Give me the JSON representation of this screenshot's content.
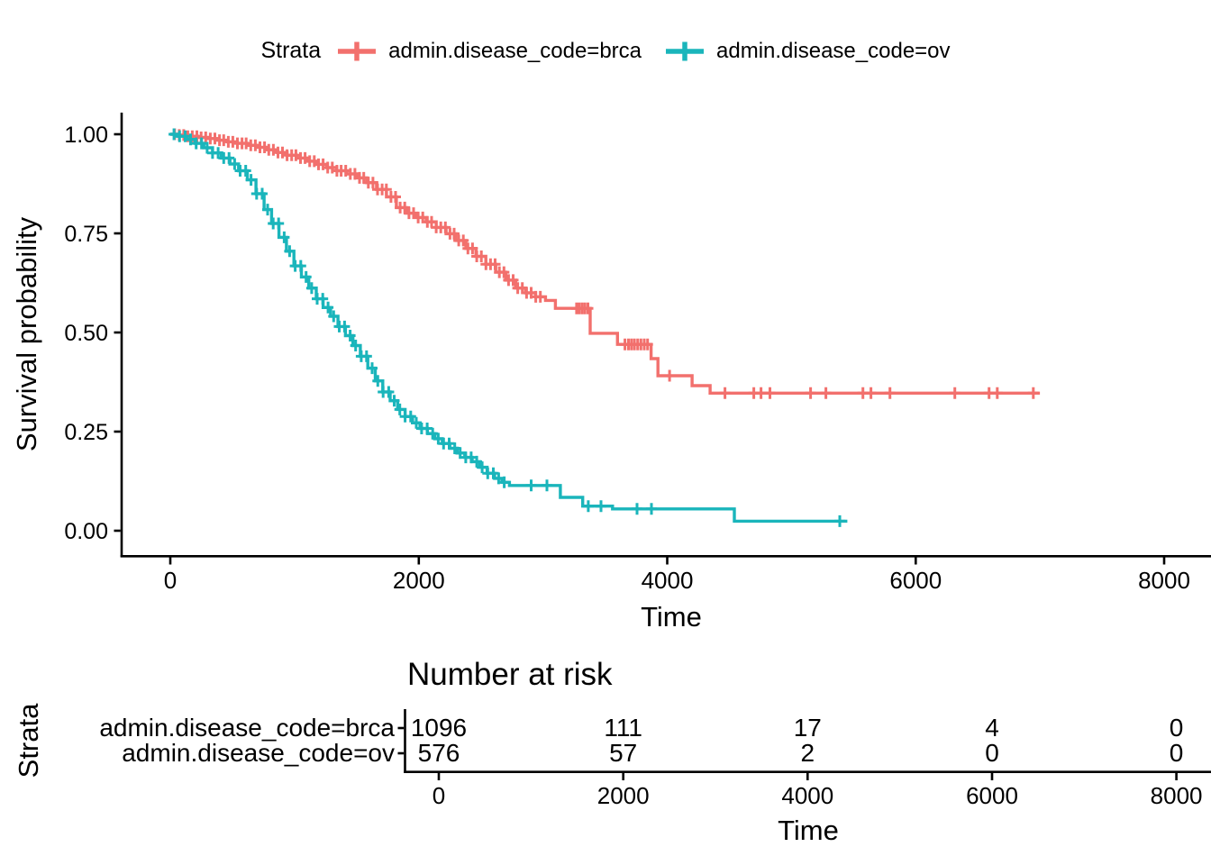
{
  "chart_data": {
    "type": "line",
    "variant": "kaplan_meier_survival",
    "title": "",
    "xlabel": "Time",
    "ylabel": "Survival probability",
    "xlim": [
      0,
      8400
    ],
    "ylim": [
      0,
      1
    ],
    "grid": false,
    "x_ticks": [
      0,
      2000,
      4000,
      6000,
      8000
    ],
    "x_tick_labels": [
      "0",
      "2000",
      "4000",
      "6000",
      "8000"
    ],
    "y_ticks": [
      1.0,
      0.75,
      0.5,
      0.25,
      0.0
    ],
    "y_tick_labels": [
      "1.00",
      "0.75",
      "0.50",
      "0.25",
      "0.00"
    ],
    "legend": {
      "title": "Strata",
      "position": "top"
    },
    "series": [
      {
        "name": "admin.disease_code=brca",
        "color": "#F2706D",
        "end_time": 7000,
        "steps": [
          [
            0,
            1.0
          ],
          [
            60,
            0.998
          ],
          [
            140,
            0.995
          ],
          [
            220,
            0.992
          ],
          [
            300,
            0.989
          ],
          [
            380,
            0.985
          ],
          [
            460,
            0.981
          ],
          [
            540,
            0.977
          ],
          [
            620,
            0.972
          ],
          [
            700,
            0.967
          ],
          [
            780,
            0.961
          ],
          [
            860,
            0.954
          ],
          [
            940,
            0.947
          ],
          [
            1020,
            0.94
          ],
          [
            1100,
            0.932
          ],
          [
            1180,
            0.924
          ],
          [
            1260,
            0.916
          ],
          [
            1340,
            0.908
          ],
          [
            1420,
            0.9
          ],
          [
            1500,
            0.89
          ],
          [
            1580,
            0.878
          ],
          [
            1660,
            0.861
          ],
          [
            1740,
            0.842
          ],
          [
            1820,
            0.815
          ],
          [
            1900,
            0.801
          ],
          [
            1980,
            0.79
          ],
          [
            2060,
            0.779
          ],
          [
            2140,
            0.765
          ],
          [
            2220,
            0.749
          ],
          [
            2300,
            0.732
          ],
          [
            2380,
            0.712
          ],
          [
            2460,
            0.692
          ],
          [
            2540,
            0.672
          ],
          [
            2620,
            0.652
          ],
          [
            2700,
            0.632
          ],
          [
            2780,
            0.612
          ],
          [
            2860,
            0.6
          ],
          [
            2940,
            0.59
          ],
          [
            3020,
            0.581
          ],
          [
            3100,
            0.561
          ],
          [
            3380,
            0.498
          ],
          [
            3600,
            0.47
          ],
          [
            3870,
            0.434
          ],
          [
            3925,
            0.391
          ],
          [
            4200,
            0.366
          ],
          [
            4345,
            0.347
          ]
        ],
        "censor_times": [
          35,
          72,
          108,
          141,
          177,
          214,
          248,
          285,
          322,
          359,
          396,
          430,
          467,
          503,
          540,
          577,
          611,
          648,
          685,
          722,
          759,
          793,
          830,
          867,
          903,
          940,
          977,
          1011,
          1048,
          1085,
          1122,
          1159,
          1193,
          1230,
          1267,
          1304,
          1341,
          1375,
          1412,
          1449,
          1486,
          1523,
          1557,
          1594,
          1631,
          1668,
          1705,
          1739,
          1776,
          1813,
          1850,
          1887,
          1921,
          1958,
          1995,
          2032,
          2069,
          2103,
          2140,
          2177,
          2214,
          2251,
          2285,
          2322,
          2359,
          2396,
          2433,
          2467,
          2504,
          2541,
          2578,
          2615,
          2649,
          2686,
          2723,
          2760,
          2797,
          2834,
          2868,
          2905,
          2942,
          2979,
          3270,
          3292,
          3315,
          3338,
          3362,
          3660,
          3688,
          3712,
          3736,
          3762,
          3788,
          3815,
          3842,
          4019,
          4465,
          4697,
          4755,
          4827,
          5154,
          5277,
          5575,
          5640,
          5793,
          6315,
          6591,
          6657,
          6947
        ]
      },
      {
        "name": "admin.disease_code=ov",
        "color": "#1AB5BB",
        "end_time": 5450,
        "steps": [
          [
            0,
            1.0
          ],
          [
            60,
            0.995
          ],
          [
            130,
            0.987
          ],
          [
            200,
            0.977
          ],
          [
            270,
            0.966
          ],
          [
            340,
            0.953
          ],
          [
            410,
            0.94
          ],
          [
            480,
            0.925
          ],
          [
            550,
            0.908
          ],
          [
            620,
            0.885
          ],
          [
            690,
            0.85
          ],
          [
            755,
            0.81
          ],
          [
            815,
            0.775
          ],
          [
            875,
            0.74
          ],
          [
            935,
            0.705
          ],
          [
            995,
            0.668
          ],
          [
            1055,
            0.64
          ],
          [
            1115,
            0.612
          ],
          [
            1175,
            0.585
          ],
          [
            1230,
            0.563
          ],
          [
            1290,
            0.541
          ],
          [
            1350,
            0.515
          ],
          [
            1410,
            0.492
          ],
          [
            1470,
            0.467
          ],
          [
            1530,
            0.44
          ],
          [
            1590,
            0.41
          ],
          [
            1650,
            0.378
          ],
          [
            1710,
            0.35
          ],
          [
            1770,
            0.328
          ],
          [
            1830,
            0.306
          ],
          [
            1890,
            0.288
          ],
          [
            1950,
            0.272
          ],
          [
            2010,
            0.258
          ],
          [
            2070,
            0.245
          ],
          [
            2130,
            0.232
          ],
          [
            2190,
            0.22
          ],
          [
            2250,
            0.208
          ],
          [
            2310,
            0.196
          ],
          [
            2370,
            0.185
          ],
          [
            2430,
            0.174
          ],
          [
            2490,
            0.16
          ],
          [
            2550,
            0.145
          ],
          [
            2610,
            0.132
          ],
          [
            2670,
            0.122
          ],
          [
            2730,
            0.114
          ],
          [
            3140,
            0.084
          ],
          [
            3320,
            0.062
          ],
          [
            3560,
            0.055
          ],
          [
            4540,
            0.024
          ]
        ],
        "censor_times": [
          30,
          75,
          120,
          163,
          208,
          252,
          297,
          340,
          385,
          430,
          473,
          518,
          562,
          607,
          650,
          695,
          740,
          783,
          828,
          872,
          917,
          960,
          1005,
          1050,
          1093,
          1138,
          1182,
          1227,
          1270,
          1315,
          1360,
          1403,
          1448,
          1492,
          1537,
          1580,
          1625,
          1670,
          1713,
          1758,
          1802,
          1847,
          1890,
          1935,
          1980,
          2023,
          2068,
          2112,
          2157,
          2200,
          2245,
          2290,
          2333,
          2378,
          2422,
          2467,
          2510,
          2555,
          2600,
          2643,
          2688,
          2905,
          3032,
          3365,
          3467,
          3757,
          3873,
          5389
        ]
      }
    ],
    "risk_table": {
      "title": "Number at risk",
      "ylabel": "Strata",
      "xlabel": "Time",
      "x_ticks": [
        0,
        2000,
        4000,
        6000,
        8000
      ],
      "x_tick_labels": [
        "0",
        "2000",
        "4000",
        "6000",
        "8000"
      ],
      "rows": [
        {
          "label": "admin.disease_code=brca",
          "color": "#F2706D",
          "counts": [
            "1096",
            "111",
            "17",
            "4",
            "0"
          ]
        },
        {
          "label": "admin.disease_code=ov",
          "color": "#1AB5BB",
          "counts": [
            "576",
            "57",
            "2",
            "0",
            "0"
          ]
        }
      ]
    }
  }
}
